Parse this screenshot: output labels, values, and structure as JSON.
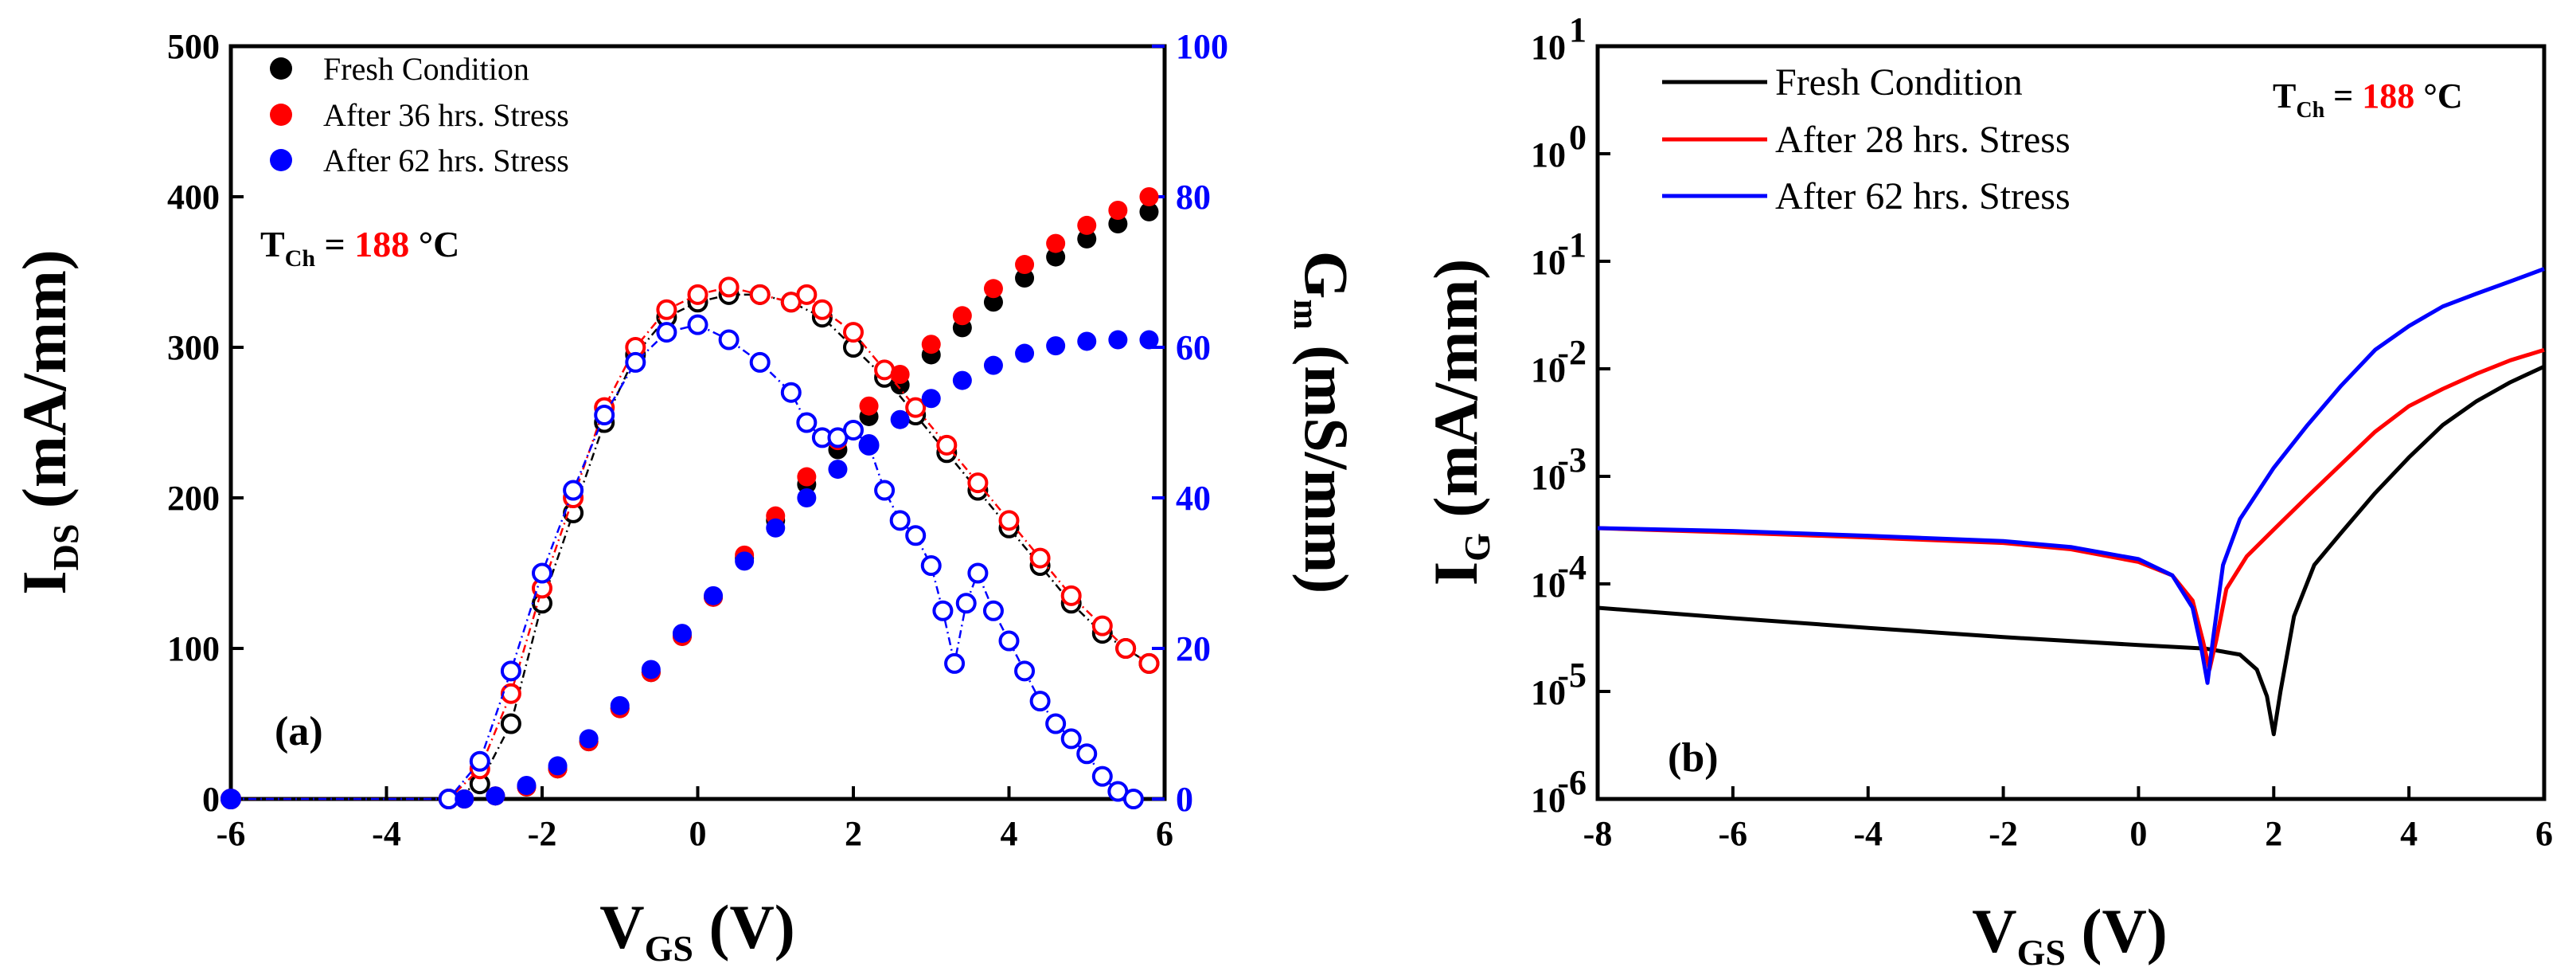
{
  "chart_data": [
    {
      "panel_label": "(a)",
      "type": "scatter",
      "xlabel": "V",
      "xlabel_sub": "GS",
      "xlabel_unit": " (V)",
      "ylabel": "I",
      "ylabel_sub": "DS",
      "ylabel_unit": " (mA/mm)",
      "y2label": "G",
      "y2label_sub": "m",
      "y2label_unit": " (mS/mm)",
      "xlim": [
        -6,
        6
      ],
      "ylim": [
        0,
        500
      ],
      "y2lim": [
        0,
        100
      ],
      "xticks": [
        "-6",
        "-4",
        "-2",
        "0",
        "2",
        "4",
        "6"
      ],
      "yticks": [
        "0",
        "100",
        "200",
        "300",
        "400",
        "500"
      ],
      "y2ticks": [
        "0",
        "20",
        "40",
        "60",
        "80",
        "100"
      ],
      "annotation": {
        "prefix": "T",
        "sub": "Ch",
        "eq": " = ",
        "value": "188",
        "unit": " °C"
      },
      "legend_position": "top-left",
      "series": [
        {
          "name": "Fresh Condition",
          "color": "#000000",
          "ids_x": [
            -6,
            -3,
            -2.6,
            -2.2,
            -1.8,
            -1.4,
            -1,
            -0.6,
            -0.2,
            0.2,
            0.6,
            1,
            1.4,
            1.8,
            2.2,
            2.6,
            3,
            3.4,
            3.8,
            4.2,
            4.6,
            5,
            5.4,
            5.8
          ],
          "ids_y": [
            0,
            0,
            2,
            8,
            20,
            38,
            60,
            84,
            108,
            134,
            160,
            185,
            209,
            232,
            254,
            275,
            295,
            313,
            330,
            346,
            360,
            372,
            382,
            390
          ],
          "gm_x": [
            -6,
            -3.2,
            -2.8,
            -2.4,
            -2,
            -1.6,
            -1.2,
            -0.8,
            -0.4,
            0,
            0.4,
            0.8,
            1.2,
            1.6,
            2,
            2.4,
            2.8,
            3.2,
            3.6,
            4,
            4.4,
            4.8,
            5.2,
            5.5,
            5.8
          ],
          "gm_y": [
            0,
            0,
            2,
            10,
            26,
            38,
            50,
            59,
            64,
            66,
            67,
            67,
            66,
            64,
            60,
            56,
            51,
            46,
            41,
            36,
            31,
            26,
            22,
            20,
            18
          ]
        },
        {
          "name": "After 36 hrs. Stress",
          "color": "#ff0000",
          "ids_x": [
            -6,
            -3,
            -2.6,
            -2.2,
            -1.8,
            -1.4,
            -1,
            -0.6,
            -0.2,
            0.2,
            0.6,
            1,
            1.4,
            1.8,
            2.2,
            2.6,
            3,
            3.4,
            3.8,
            4.2,
            4.6,
            5,
            5.4,
            5.8
          ],
          "ids_y": [
            0,
            0,
            2,
            8,
            20,
            38,
            60,
            84,
            108,
            134,
            162,
            188,
            214,
            238,
            261,
            282,
            302,
            321,
            339,
            355,
            369,
            381,
            391,
            400
          ],
          "gm_x": [
            -6,
            -3.2,
            -2.8,
            -2.4,
            -2,
            -1.6,
            -1.2,
            -0.8,
            -0.4,
            0,
            0.4,
            0.8,
            1.2,
            1.4,
            1.6,
            2,
            2.4,
            2.8,
            3.2,
            3.6,
            4,
            4.4,
            4.8,
            5.2,
            5.5,
            5.8
          ],
          "gm_y": [
            0,
            0,
            4,
            14,
            28,
            40,
            52,
            60,
            65,
            67,
            68,
            67,
            66,
            67,
            65,
            62,
            57,
            52,
            47,
            42,
            37,
            32,
            27,
            23,
            20,
            18
          ]
        },
        {
          "name": "After 62 hrs. Stress",
          "color": "#0000ff",
          "ids_x": [
            -6,
            -3,
            -2.6,
            -2.2,
            -1.8,
            -1.4,
            -1,
            -0.6,
            -0.2,
            0.2,
            0.6,
            1,
            1.4,
            1.8,
            2.2,
            2.6,
            3,
            3.4,
            3.8,
            4.2,
            4.6,
            5,
            5.4,
            5.8
          ],
          "ids_y": [
            0,
            0,
            2,
            9,
            22,
            40,
            62,
            86,
            110,
            135,
            158,
            180,
            200,
            219,
            236,
            252,
            266,
            278,
            288,
            296,
            301,
            304,
            305,
            305
          ],
          "gm_x": [
            -6,
            -3.2,
            -2.8,
            -2.4,
            -2,
            -1.6,
            -1.2,
            -0.8,
            -0.4,
            0,
            0.4,
            0.8,
            1.2,
            1.4,
            1.6,
            1.8,
            2,
            2.2,
            2.4,
            2.6,
            2.8,
            3,
            3.15,
            3.3,
            3.45,
            3.6,
            3.8,
            4,
            4.2,
            4.4,
            4.6,
            4.8,
            5,
            5.2,
            5.4,
            5.6
          ],
          "gm_y": [
            0,
            0,
            5,
            17,
            30,
            41,
            51,
            58,
            62,
            63,
            61,
            58,
            54,
            50,
            48,
            48,
            49,
            47,
            41,
            37,
            35,
            31,
            25,
            18,
            26,
            30,
            25,
            21,
            17,
            13,
            10,
            8,
            6,
            3,
            1,
            0
          ]
        }
      ]
    },
    {
      "panel_label": "(b)",
      "type": "line",
      "xlabel": "V",
      "xlabel_sub": "GS",
      "xlabel_unit": " (V)",
      "ylabel": "I",
      "ylabel_sub": "G",
      "ylabel_unit": " (mA/mm)",
      "xlim": [
        -8,
        6
      ],
      "ylim_log10": [
        -6,
        1
      ],
      "xticks": [
        "-8",
        "-6",
        "-4",
        "-2",
        "0",
        "2",
        "4",
        "6"
      ],
      "yticks_exp": [
        "-6",
        "-5",
        "-4",
        "-3",
        "-2",
        "-1",
        "0",
        "1"
      ],
      "ytick_base": "10",
      "annotation": {
        "prefix": "T",
        "sub": "Ch",
        "eq": " = ",
        "value": "188",
        "unit": " °C"
      },
      "legend_position": "top-left",
      "series": [
        {
          "name": "Fresh Condition",
          "color": "#000000",
          "x": [
            -8,
            -6,
            -4,
            -2,
            0,
            1,
            1.5,
            1.75,
            1.9,
            2,
            2.1,
            2.3,
            2.6,
            3,
            3.5,
            4,
            4.5,
            5,
            5.5,
            6
          ],
          "y": [
            6e-05,
            4.8e-05,
            3.9e-05,
            3.2e-05,
            2.7e-05,
            2.5e-05,
            2.2e-05,
            1.6e-05,
            9e-06,
            4e-06,
            1e-05,
            5e-05,
            0.00015,
            0.0003,
            0.0007,
            0.0015,
            0.003,
            0.005,
            0.0075,
            0.0105
          ]
        },
        {
          "name": "After 28 hrs. Stress",
          "color": "#ff0000",
          "x": [
            -8,
            -6,
            -4,
            -2,
            -1,
            0,
            0.5,
            0.8,
            0.95,
            1.05,
            1.15,
            1.3,
            1.6,
            2,
            2.5,
            3,
            3.5,
            4,
            4.5,
            5,
            5.5,
            6
          ],
          "y": [
            0.00033,
            0.0003,
            0.00027,
            0.00024,
            0.00021,
            0.00016,
            0.00012,
            7e-05,
            3e-05,
            1.6e-05,
            3e-05,
            9e-05,
            0.00018,
            0.00032,
            0.00065,
            0.0013,
            0.0026,
            0.0045,
            0.0065,
            0.009,
            0.012,
            0.015
          ]
        },
        {
          "name": "After 62 hrs. Stress",
          "color": "#0000ff",
          "x": [
            -8,
            -6,
            -4,
            -2,
            -1,
            0,
            0.5,
            0.8,
            0.93,
            1.02,
            1.1,
            1.25,
            1.5,
            2,
            2.5,
            3,
            3.5,
            4,
            4.5,
            5,
            5.5,
            6
          ],
          "y": [
            0.00033,
            0.00031,
            0.00028,
            0.00025,
            0.00022,
            0.00017,
            0.00012,
            6e-05,
            2.5e-05,
            1.2e-05,
            3e-05,
            0.00015,
            0.0004,
            0.0012,
            0.003,
            0.007,
            0.015,
            0.025,
            0.038,
            0.05,
            0.065,
            0.085
          ]
        }
      ]
    }
  ]
}
